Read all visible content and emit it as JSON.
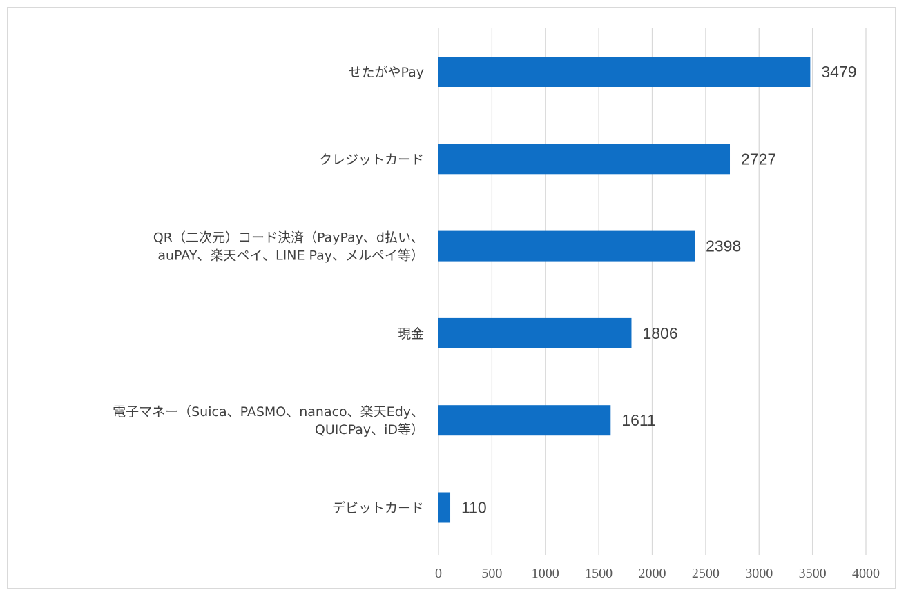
{
  "chart_data": {
    "type": "bar",
    "orientation": "horizontal",
    "categories": [
      [
        "せたがやPay"
      ],
      [
        "クレジットカード"
      ],
      [
        "QR（二次元）コード決済（PayPay、d払い、",
        "auPAY、楽天ペイ、LINE Pay、メルペイ等）"
      ],
      [
        "現金"
      ],
      [
        "電子マネー（Suica、PASMO、nanaco、楽天Edy、",
        "QUICPay、iD等）"
      ],
      [
        "デビットカード"
      ]
    ],
    "values": [
      3479,
      2727,
      2398,
      1806,
      1611,
      110
    ],
    "data_labels": [
      "3479",
      "2727",
      "2398",
      "1806",
      "1611",
      "110"
    ],
    "xlim": [
      0,
      4000
    ],
    "xticks": [
      0,
      500,
      1000,
      1500,
      2000,
      2500,
      3000,
      3500,
      4000
    ],
    "tick_labels": [
      "0",
      "500",
      "1000",
      "1500",
      "2000",
      "2500",
      "3000",
      "3500",
      "4000"
    ],
    "title": "",
    "xlabel": "",
    "ylabel": "",
    "grid": "vertical",
    "legend": "none",
    "bar_color": "#0f6fc6",
    "grid_color": "#d9d9d9",
    "text_color": "#404040"
  }
}
